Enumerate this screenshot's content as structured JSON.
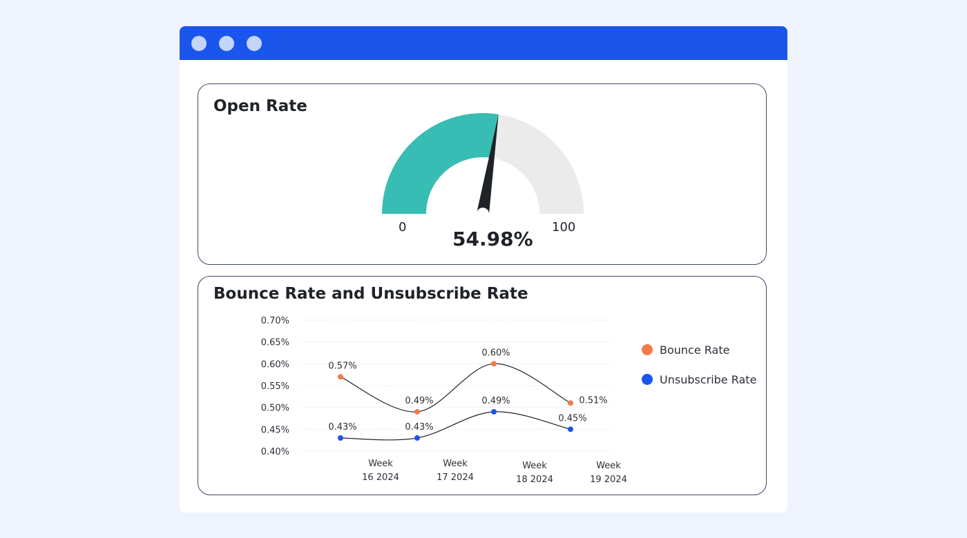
{
  "window": {
    "controls": [
      "window-dot-1",
      "window-dot-2",
      "window-dot-3"
    ]
  },
  "open_rate_card": {
    "title": "Open Rate",
    "gauge": {
      "value_label": "54.98%",
      "value": 54.98,
      "min_label": "0",
      "max_label": "100",
      "min": 0,
      "max": 100,
      "fill_color": "#38bdb4",
      "track_color": "#ebebeb",
      "needle_color": "#1f2328"
    }
  },
  "rates_card": {
    "title": "Bounce Rate and Unsubscribe Rate",
    "legend": [
      {
        "label": "Bounce Rate",
        "color": "#f47a4a"
      },
      {
        "label": "Unsubscribe Rate",
        "color": "#1a56eb"
      }
    ]
  },
  "chart_data": {
    "type": "line",
    "categories": [
      "Week\n16 2024",
      "Week\n17 2024",
      "Week\n18 2024",
      "Week\n19 2024"
    ],
    "x_tick_lines": [
      [
        "Week",
        "16 2024"
      ],
      [
        "Week",
        "17 2024"
      ],
      [
        "Week",
        "18 2024"
      ],
      [
        "Week",
        "19 2024"
      ]
    ],
    "series": [
      {
        "name": "Bounce Rate",
        "color": "#f47a4a",
        "values": [
          0.57,
          0.49,
          0.6,
          0.51
        ],
        "labels": [
          "0.57%",
          "0.49%",
          "0.60%",
          "0.51%"
        ]
      },
      {
        "name": "Unsubscribe Rate",
        "color": "#1a56eb",
        "values": [
          0.43,
          0.43,
          0.49,
          0.45
        ],
        "labels": [
          "0.43%",
          "0.43%",
          "0.49%",
          "0.45%"
        ]
      }
    ],
    "y_ticks": [
      "0.40%",
      "0.45%",
      "0.50%",
      "0.55%",
      "0.60%",
      "0.65%",
      "0.70%"
    ],
    "ylim": [
      0.4,
      0.7
    ],
    "grid": true,
    "legend_position": "right"
  }
}
